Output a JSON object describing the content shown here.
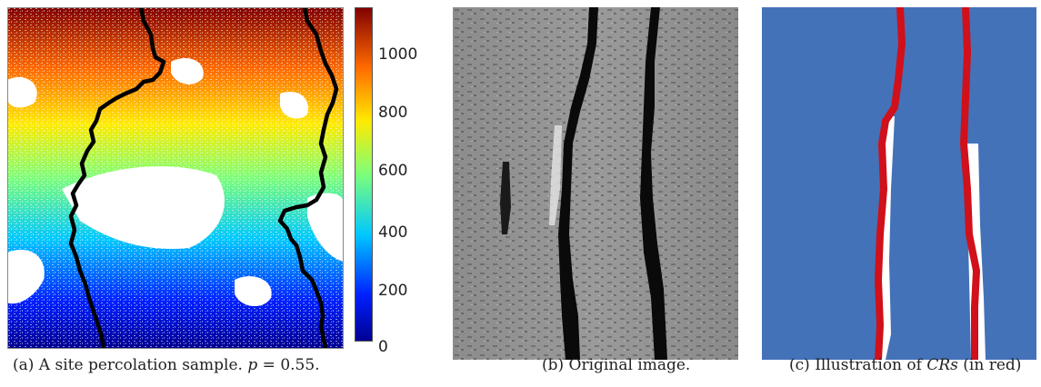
{
  "figure": {
    "panel_a": {
      "caption_prefix": "(a) A site percolation sample.",
      "caption_p_label": "p",
      "caption_p_value": "= 0.55.",
      "colorbar_ticks": [
        "0",
        "200",
        "400",
        "600",
        "800",
        "1000"
      ],
      "colorbar_max": 1150
    },
    "panel_b": {
      "caption": "(b) Original image."
    },
    "panel_c": {
      "caption_prefix": "(c) Illustration of",
      "caption_symbol": "CRs",
      "caption_suffix": "(in red)"
    }
  },
  "colors": {
    "path_black": "#000000",
    "background_blue": "#4472b8",
    "path_red": "#d0101a",
    "white_region": "#ffffff"
  }
}
